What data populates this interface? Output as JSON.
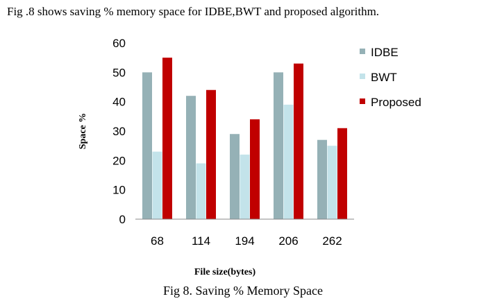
{
  "intro_text": "Fig .8 shows saving % memory space for IDBE,BWT and proposed algorithm.",
  "caption": "Fig 8. Saving % Memory Space",
  "chart_data": {
    "type": "bar",
    "title": "",
    "xlabel": "File size(bytes)",
    "ylabel": "Space %",
    "categories": [
      "68",
      "114",
      "194",
      "206",
      "262"
    ],
    "ylim": [
      0,
      60
    ],
    "yticks": [
      0,
      10,
      20,
      30,
      40,
      50,
      60
    ],
    "grid": false,
    "legend_position": "right",
    "series": [
      {
        "name": "IDBE",
        "values": [
          50,
          42,
          29,
          50,
          27
        ],
        "color": "#95b1b6"
      },
      {
        "name": "BWT",
        "values": [
          23,
          19,
          22,
          39,
          25
        ],
        "color": "#c3e3ea"
      },
      {
        "name": "Proposed",
        "values": [
          55,
          44,
          34,
          53,
          31
        ],
        "color": "#c00000"
      }
    ]
  }
}
